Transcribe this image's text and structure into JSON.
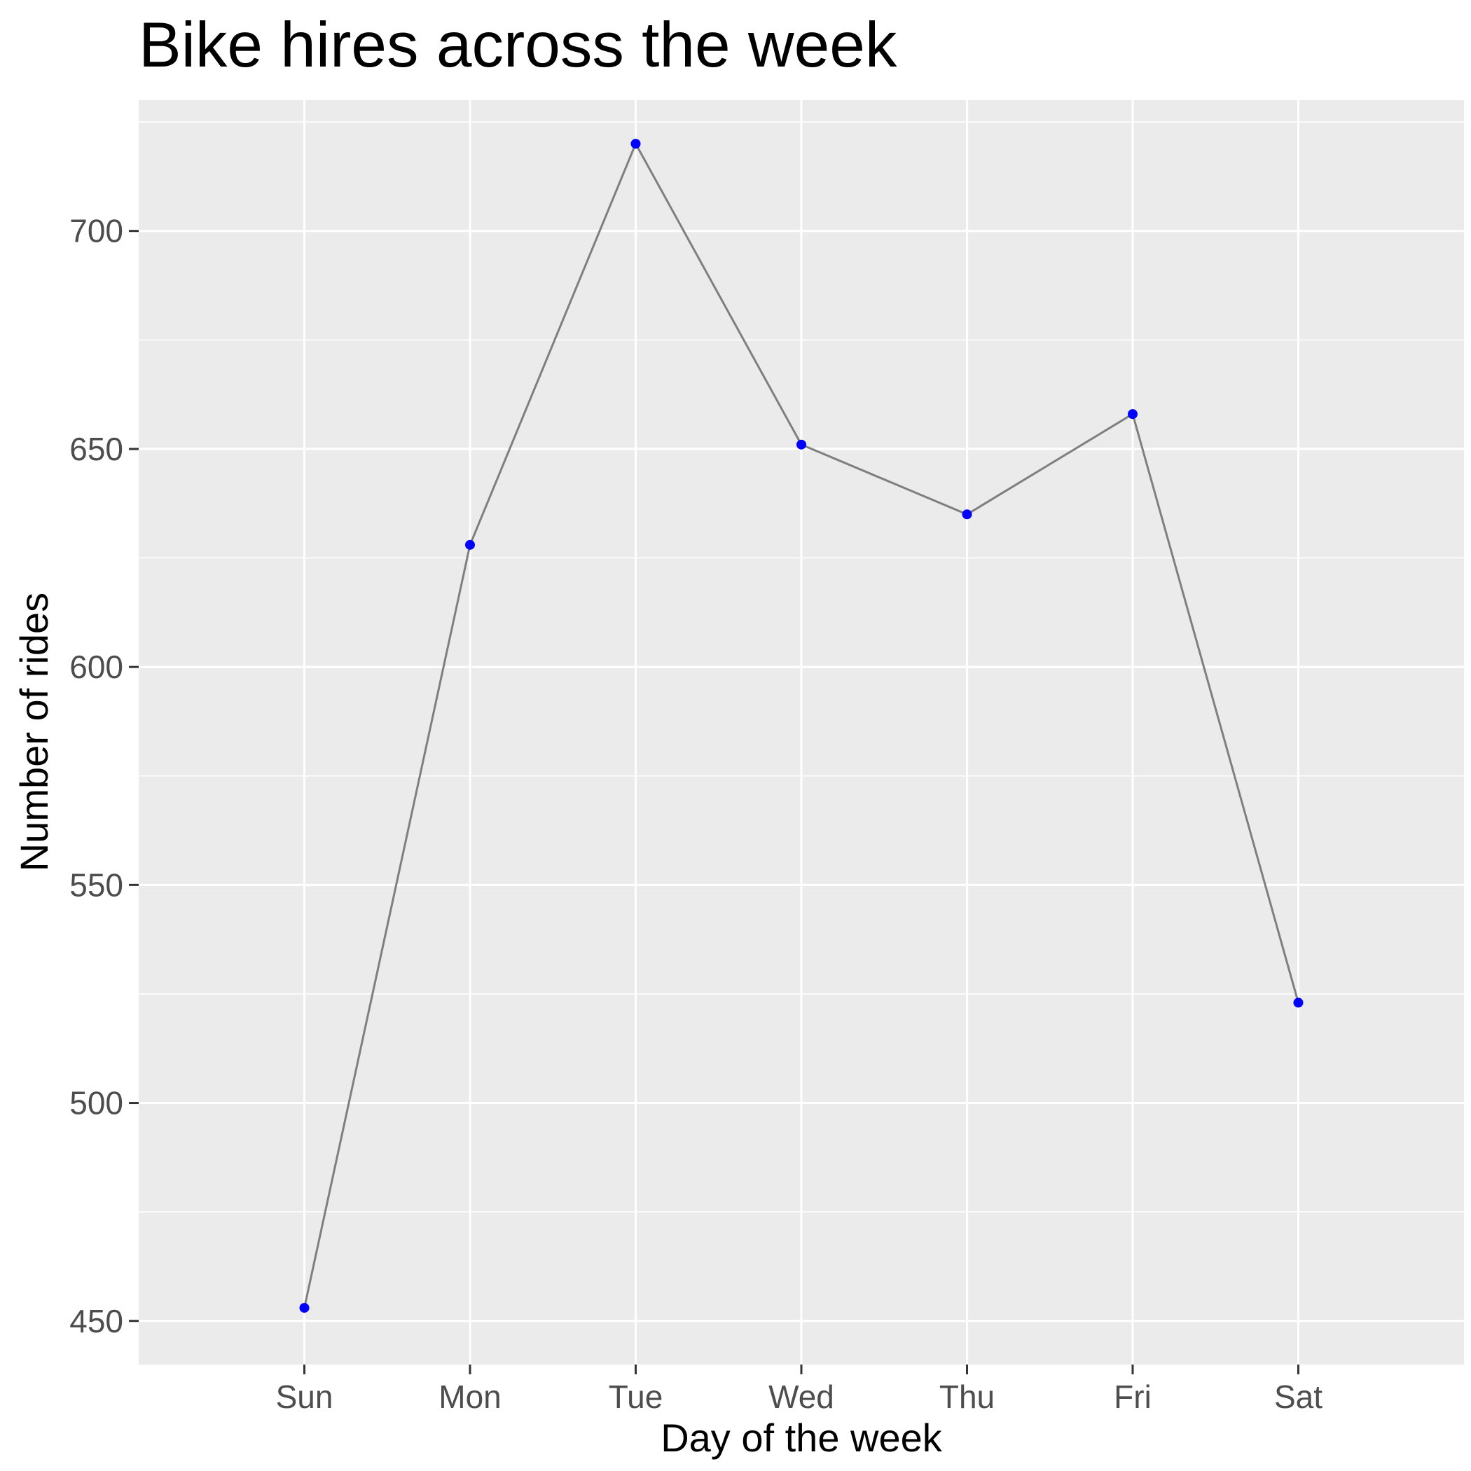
{
  "chart_data": {
    "type": "line",
    "title": "Bike hires across the week",
    "xlabel": "Day of the week",
    "ylabel": "Number of rides",
    "categories": [
      "Sun",
      "Mon",
      "Tue",
      "Wed",
      "Thu",
      "Fri",
      "Sat"
    ],
    "values": [
      453,
      628,
      720,
      651,
      635,
      658,
      523
    ],
    "ylim": [
      440,
      730
    ],
    "yticks": [
      450,
      500,
      550,
      600,
      650,
      700
    ],
    "grid": true,
    "legend": "none",
    "colors": {
      "panel_background": "#ebebeb",
      "line": "#7f7f7f",
      "points": "#0000ff"
    }
  }
}
